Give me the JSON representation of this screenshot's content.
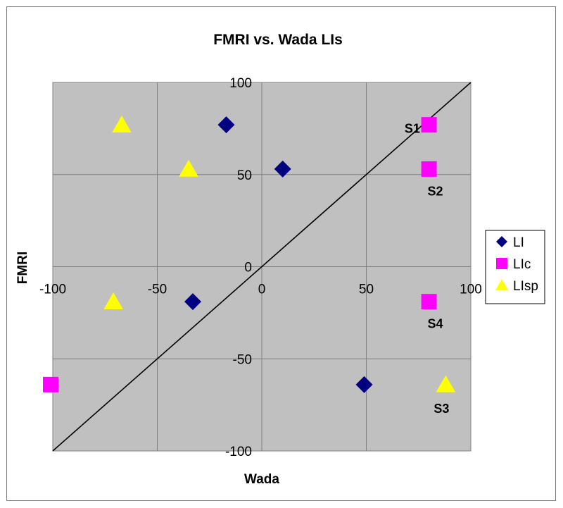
{
  "chart_data": {
    "type": "scatter",
    "title": "FMRI vs. Wada LIs",
    "xlabel": "Wada",
    "ylabel": "FMRI",
    "xlim": [
      -100,
      100
    ],
    "ylim": [
      -100,
      100
    ],
    "xticks": [
      -100,
      -50,
      0,
      50,
      100
    ],
    "yticks": [
      -100,
      -50,
      0,
      50,
      100
    ],
    "grid": "major horizontal and vertical gridlines",
    "plot_background": "#c0c0c0",
    "legend_position": "right",
    "series": [
      {
        "name": "LI",
        "marker": "diamond",
        "color": "#000080",
        "points": [
          {
            "x": -17,
            "y": 77
          },
          {
            "x": 10,
            "y": 53
          },
          {
            "x": -33,
            "y": -19
          },
          {
            "x": 49,
            "y": -64
          }
        ]
      },
      {
        "name": "LIc",
        "marker": "square",
        "color": "#ff00ff",
        "points": [
          {
            "x": 80,
            "y": 77
          },
          {
            "x": 80,
            "y": 53
          },
          {
            "x": 80,
            "y": -19
          },
          {
            "x": -101,
            "y": -64
          }
        ]
      },
      {
        "name": "LIsp",
        "marker": "triangle",
        "color": "#ffff00",
        "points": [
          {
            "x": -67,
            "y": 77
          },
          {
            "x": -35,
            "y": 53
          },
          {
            "x": -71,
            "y": -19
          },
          {
            "x": 88,
            "y": -64
          }
        ]
      }
    ],
    "reference_line": {
      "from": [
        -100,
        -100
      ],
      "to": [
        100,
        100
      ]
    },
    "annotations": [
      {
        "text": "S1",
        "x": 72,
        "y": 75
      },
      {
        "text": "S2",
        "x": 83,
        "y": 41
      },
      {
        "text": "S4",
        "x": 83,
        "y": -31
      },
      {
        "text": "S3",
        "x": 86,
        "y": -77
      }
    ]
  }
}
